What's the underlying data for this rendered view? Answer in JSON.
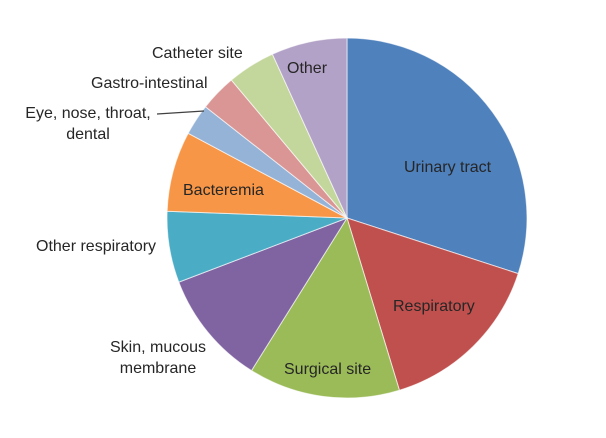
{
  "chart_data": {
    "type": "pie",
    "title": "",
    "legend": "none",
    "background_color": "#ffffff",
    "label_text_color": "#262626",
    "start_angle_deg": 0,
    "direction": "clockwise",
    "slices": [
      {
        "label": "Urinary tract",
        "value": 30.0,
        "color": "#4F81BD",
        "label_placement": "inside"
      },
      {
        "label": "Respiratory",
        "value": 15.3,
        "color": "#C0504D",
        "label_placement": "inside"
      },
      {
        "label": "Surgical site",
        "value": 13.6,
        "color": "#9BBB59",
        "label_placement": "inside"
      },
      {
        "label": "Skin, mucous\nmembrane",
        "value": 10.3,
        "color": "#8064A2",
        "label_placement": "outside"
      },
      {
        "label": "Other respiratory",
        "value": 6.4,
        "color": "#4BACC6",
        "label_placement": "outside"
      },
      {
        "label": "Bacteremia",
        "value": 7.2,
        "color": "#F79646",
        "label_placement": "inside"
      },
      {
        "label": "Eye, nose, throat,\ndental",
        "value": 2.8,
        "color": "#95B3D7",
        "label_placement": "outside",
        "leader_line": true
      },
      {
        "label": "Gastro-intestinal",
        "value": 3.3,
        "color": "#D99694",
        "label_placement": "outside"
      },
      {
        "label": "Catheter site",
        "value": 4.3,
        "color": "#C3D69B",
        "label_placement": "outside"
      },
      {
        "label": "Other",
        "value": 6.8,
        "color": "#B3A2C7",
        "label_placement": "inside"
      }
    ]
  }
}
